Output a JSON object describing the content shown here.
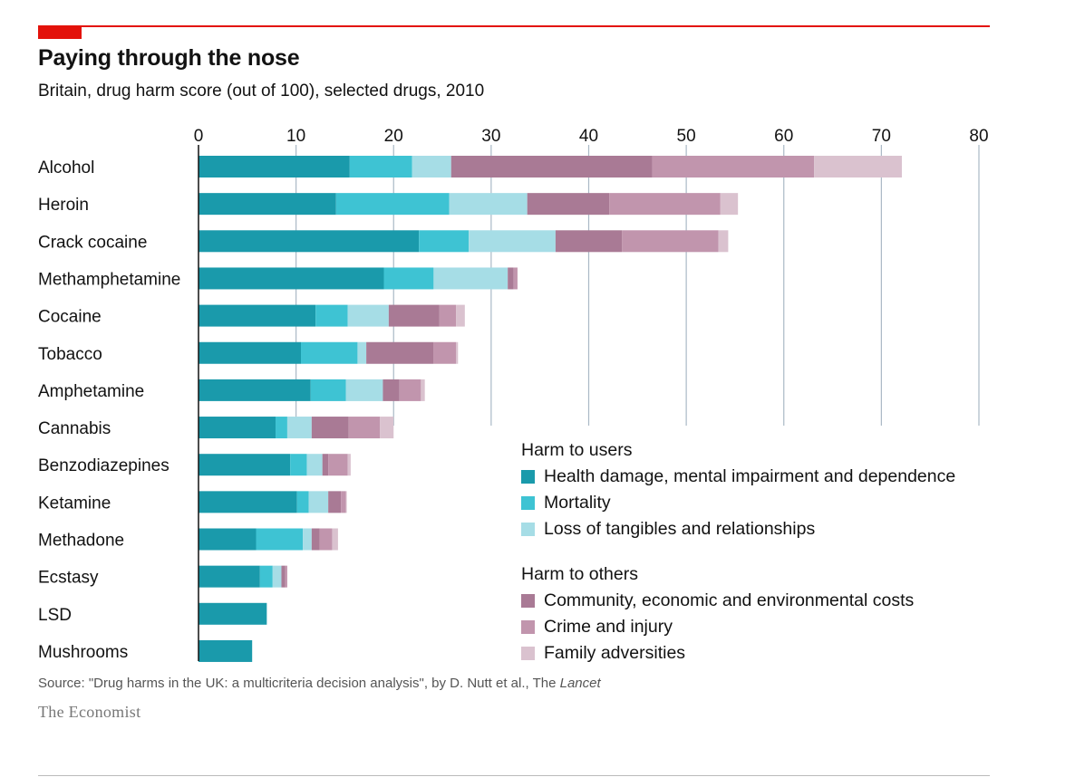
{
  "title": "Paying through the nose",
  "subtitle": "Britain, drug harm score (out of 100), selected drugs, 2010",
  "source_prefix": "Source: \"Drug harms in the UK: a multicriteria decision analysis\", by D. Nutt et al., The ",
  "source_journal": "Lancet",
  "brand": "The Economist",
  "legend": {
    "users_heading": "Harm to users",
    "others_heading": "Harm to others",
    "items": [
      "Health damage, mental impairment and dependence",
      "Mortality",
      "Loss of tangibles and relationships",
      "Community, economic and environmental costs",
      "Crime and injury",
      "Family adversities"
    ]
  },
  "chart_data": {
    "type": "bar",
    "orientation": "horizontal",
    "stacked": true,
    "title": "Paying through the nose",
    "subtitle": "Britain, drug harm score (out of 100), selected drugs, 2010",
    "xlim": [
      0,
      80
    ],
    "xticks": [
      0,
      10,
      20,
      30,
      40,
      50,
      60,
      70,
      80
    ],
    "grid": true,
    "legend_position": "bottom-right",
    "categories": [
      "Alcohol",
      "Heroin",
      "Crack cocaine",
      "Methamphetamine",
      "Cocaine",
      "Tobacco",
      "Amphetamine",
      "Cannabis",
      "Benzodiazepines",
      "Ketamine",
      "Methadone",
      "Ecstasy",
      "LSD",
      "Mushrooms"
    ],
    "series": [
      {
        "name": "Health damage, mental impairment and dependence",
        "color": "#1a9aab",
        "values": [
          15.5,
          14.1,
          22.6,
          19.0,
          12.0,
          10.5,
          11.5,
          7.9,
          9.4,
          10.1,
          5.9,
          6.3,
          7.0,
          5.5
        ]
      },
      {
        "name": "Mortality",
        "color": "#3ec3d3",
        "values": [
          6.4,
          11.6,
          5.1,
          5.1,
          3.3,
          5.8,
          3.6,
          1.2,
          1.7,
          1.2,
          4.8,
          1.3,
          0,
          0
        ]
      },
      {
        "name": "Loss of tangibles and relationships",
        "color": "#a6dde6",
        "values": [
          4.0,
          8.0,
          8.9,
          7.6,
          4.2,
          0.9,
          3.8,
          2.5,
          1.6,
          2.0,
          0.9,
          0.9,
          0,
          0
        ]
      },
      {
        "name": "Community, economic and environmental costs",
        "color": "#a97a95",
        "values": [
          20.6,
          8.4,
          6.8,
          0.6,
          5.2,
          6.9,
          1.7,
          3.8,
          0.6,
          1.3,
          0.8,
          0.4,
          0,
          0
        ]
      },
      {
        "name": "Crime and injury",
        "color": "#c195ad",
        "values": [
          16.6,
          11.4,
          9.9,
          0.4,
          1.7,
          2.3,
          2.2,
          3.2,
          2.0,
          0.5,
          1.3,
          0.2,
          0,
          0
        ]
      },
      {
        "name": "Family adversities",
        "color": "#dac2cf",
        "values": [
          9.0,
          1.8,
          1.0,
          0,
          0.9,
          0.2,
          0.4,
          1.4,
          0.3,
          0.1,
          0.6,
          0,
          0,
          0
        ]
      }
    ]
  }
}
